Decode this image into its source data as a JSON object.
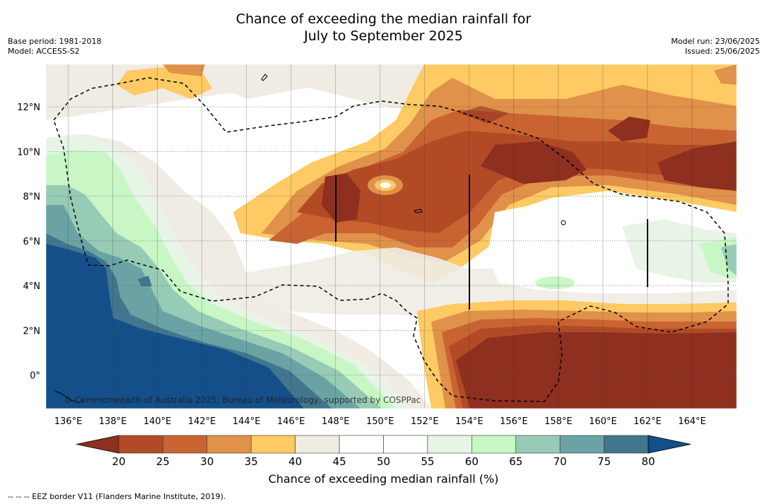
{
  "header": {
    "title_line1": "Chance of exceeding the median rainfall for",
    "title_line2": "July to September 2025",
    "base_period": "Base period: 1981-2018",
    "model": "Model: ACCESS-S2",
    "model_run": "Model run: 23/06/2025",
    "issued": "Issued: 25/06/2025"
  },
  "map": {
    "credit": "© Commonwealth of Australia 2025, Bureau of Meteorology, supported by COSPPac",
    "lon_labels": [
      "136°E",
      "138°E",
      "140°E",
      "142°E",
      "144°E",
      "146°E",
      "148°E",
      "150°E",
      "152°E",
      "154°E",
      "156°E",
      "158°E",
      "160°E",
      "162°E",
      "164°E"
    ],
    "lat_labels": [
      "12°N",
      "10°N",
      "8°N",
      "6°N",
      "4°N",
      "2°N",
      "0°"
    ],
    "lon_values": [
      136,
      138,
      140,
      142,
      144,
      146,
      148,
      150,
      152,
      154,
      156,
      158,
      160,
      162,
      164
    ],
    "lat_values": [
      12,
      10,
      8,
      6,
      4,
      2,
      0
    ],
    "lon_range": [
      135,
      166
    ],
    "lat_range": [
      -1.5,
      13.9
    ]
  },
  "colorbar": {
    "title": "Chance of exceeding median rainfall (%)",
    "ticks": [
      "20",
      "25",
      "30",
      "35",
      "40",
      "45",
      "50",
      "55",
      "60",
      "65",
      "70",
      "75",
      "80"
    ],
    "colors": [
      "#8e2f1f",
      "#b24a26",
      "#c96432",
      "#e0914a",
      "#fdca63",
      "#f0ece4",
      "#ffffff",
      "#ffffff",
      "#e8f4e6",
      "#c8f7c5",
      "#97cbb5",
      "#6ba3a5",
      "#42758e",
      "#144f8a"
    ]
  },
  "legend": {
    "eez_note": "--  --  -- EEZ border V11 (Flanders Marine Institute, 2019)."
  }
}
